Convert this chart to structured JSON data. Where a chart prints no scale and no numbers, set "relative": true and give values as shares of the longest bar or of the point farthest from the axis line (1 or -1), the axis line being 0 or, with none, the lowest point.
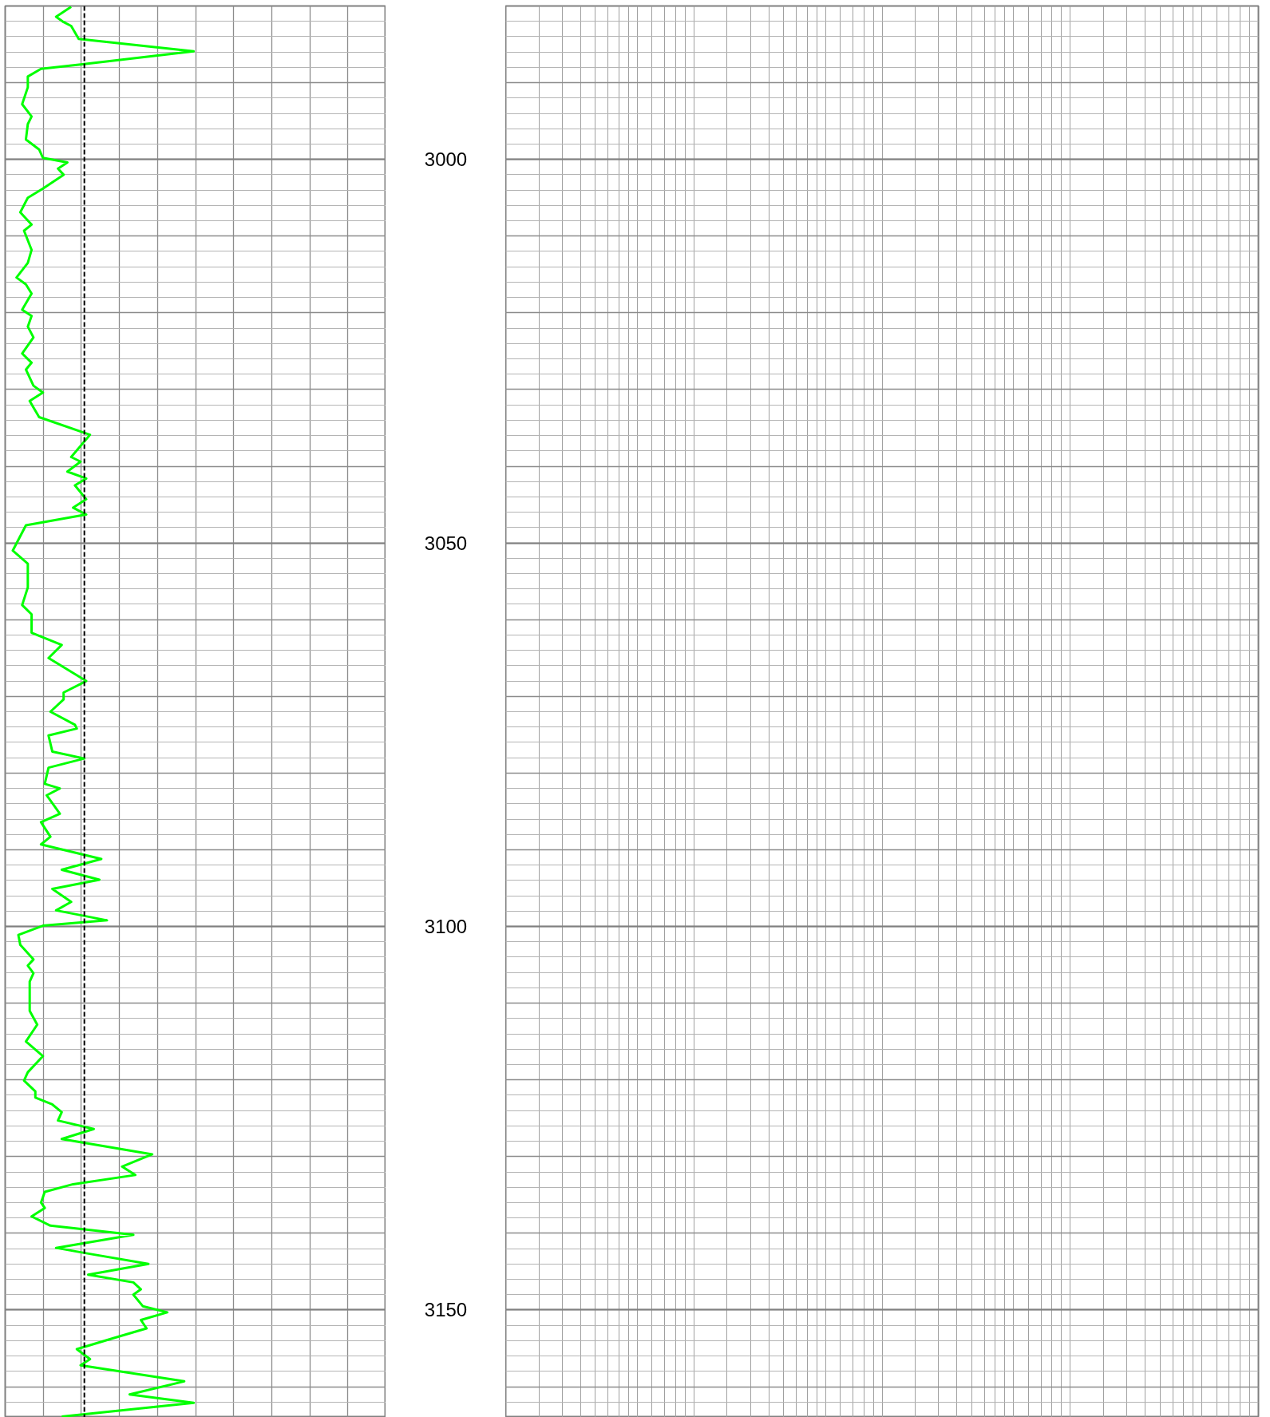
{
  "chart_data": {
    "type": "line",
    "orientation": "horizontal",
    "relative": true,
    "x": [
      2980.1,
      2981.4,
      2982.1,
      2982.6,
      2984.3,
      2985.9,
      2987.6,
      2988.2,
      2989.2,
      2990.6,
      2992.8,
      2994.4,
      2995.4,
      2997.4,
      2998.7,
      2999.8,
      3000.4,
      3001.2,
      3002.0,
      3003.8,
      3005.0,
      3006.9,
      3008.5,
      3009.3,
      3011.8,
      3013.5,
      3015.4,
      3016.3,
      3017.5,
      3019.6,
      3020.4,
      3021.8,
      3023.2,
      3025.3,
      3026.5,
      3027.4,
      3029.5,
      3030.4,
      3031.5,
      3033.6,
      3035.9,
      3038.8,
      3039.4,
      3040.7,
      3041.6,
      3042.5,
      3044.3,
      3045.4,
      3046.3,
      3047.7,
      3051.0,
      3052.7,
      3055.8,
      3058.1,
      3059.3,
      3061.7,
      3063.3,
      3065.0,
      3068.0,
      3069.5,
      3070.4,
      3072.0,
      3073.7,
      3074.2,
      3075.1,
      3077.2,
      3078.1,
      3079.3,
      3081.4,
      3082.0,
      3082.9,
      3085.3,
      3086.4,
      3088.3,
      3089.3,
      3091.2,
      3092.6,
      3093.9,
      3095.1,
      3096.8,
      3097.9,
      3099.2,
      3099.9,
      3101.1,
      3102.4,
      3104.3,
      3105.1,
      3106.1,
      3107.2,
      3111.0,
      3112.8,
      3115.0,
      3116.9,
      3119.0,
      3120.1,
      3121.5,
      3122.3,
      3123.2,
      3124.2,
      3125.3,
      3126.4,
      3127.7,
      3129.7,
      3131.3,
      3132.4,
      3133.6,
      3134.6,
      3136.0,
      3136.7,
      3137.8,
      3139.0,
      3140.2,
      3141.9,
      3142.6,
      3144.0,
      3145.4,
      3146.4,
      3147.3,
      3148.0,
      3149.5,
      3150.3,
      3151.3,
      3152.4,
      3153.7,
      3155.1,
      3156.4,
      3157.2,
      3159.3,
      3161.0,
      3162.1,
      3163.9
    ],
    "series": [
      {
        "color": "#00ff00",
        "values": [
          0.35,
          0.27,
          0.31,
          0.35,
          0.39,
          1.0,
          0.41,
          0.19,
          0.12,
          0.12,
          0.09,
          0.14,
          0.12,
          0.11,
          0.18,
          0.2,
          0.33,
          0.28,
          0.31,
          0.2,
          0.12,
          0.08,
          0.14,
          0.1,
          0.14,
          0.12,
          0.06,
          0.11,
          0.14,
          0.09,
          0.14,
          0.12,
          0.15,
          0.09,
          0.14,
          0.11,
          0.15,
          0.2,
          0.13,
          0.18,
          0.45,
          0.35,
          0.4,
          0.33,
          0.43,
          0.37,
          0.43,
          0.36,
          0.43,
          0.11,
          0.04,
          0.12,
          0.12,
          0.09,
          0.14,
          0.14,
          0.3,
          0.23,
          0.43,
          0.31,
          0.31,
          0.24,
          0.37,
          0.38,
          0.23,
          0.25,
          0.42,
          0.23,
          0.21,
          0.29,
          0.22,
          0.29,
          0.19,
          0.24,
          0.19,
          0.51,
          0.3,
          0.5,
          0.25,
          0.35,
          0.27,
          0.54,
          0.2,
          0.07,
          0.08,
          0.15,
          0.12,
          0.15,
          0.13,
          0.13,
          0.17,
          0.11,
          0.2,
          0.12,
          0.1,
          0.16,
          0.16,
          0.25,
          0.3,
          0.28,
          0.47,
          0.3,
          0.78,
          0.62,
          0.69,
          0.36,
          0.21,
          0.19,
          0.21,
          0.14,
          0.24,
          0.68,
          0.27,
          0.43,
          0.76,
          0.44,
          0.68,
          0.72,
          0.68,
          0.73,
          0.86,
          0.72,
          0.75,
          0.57,
          0.38,
          0.45,
          0.4,
          0.95,
          0.66,
          1.0,
          0.3
        ]
      }
    ],
    "ylim": [
      3164,
      2980
    ],
    "yticks": [
      3000,
      3050,
      3100,
      3150
    ],
    "tick_labels": "y",
    "grid": true,
    "line_style": "solid",
    "ref_lines": [
      {
        "axis": "x",
        "value": 0.42,
        "color": "#000000",
        "line_style": "dashed"
      }
    ]
  }
}
